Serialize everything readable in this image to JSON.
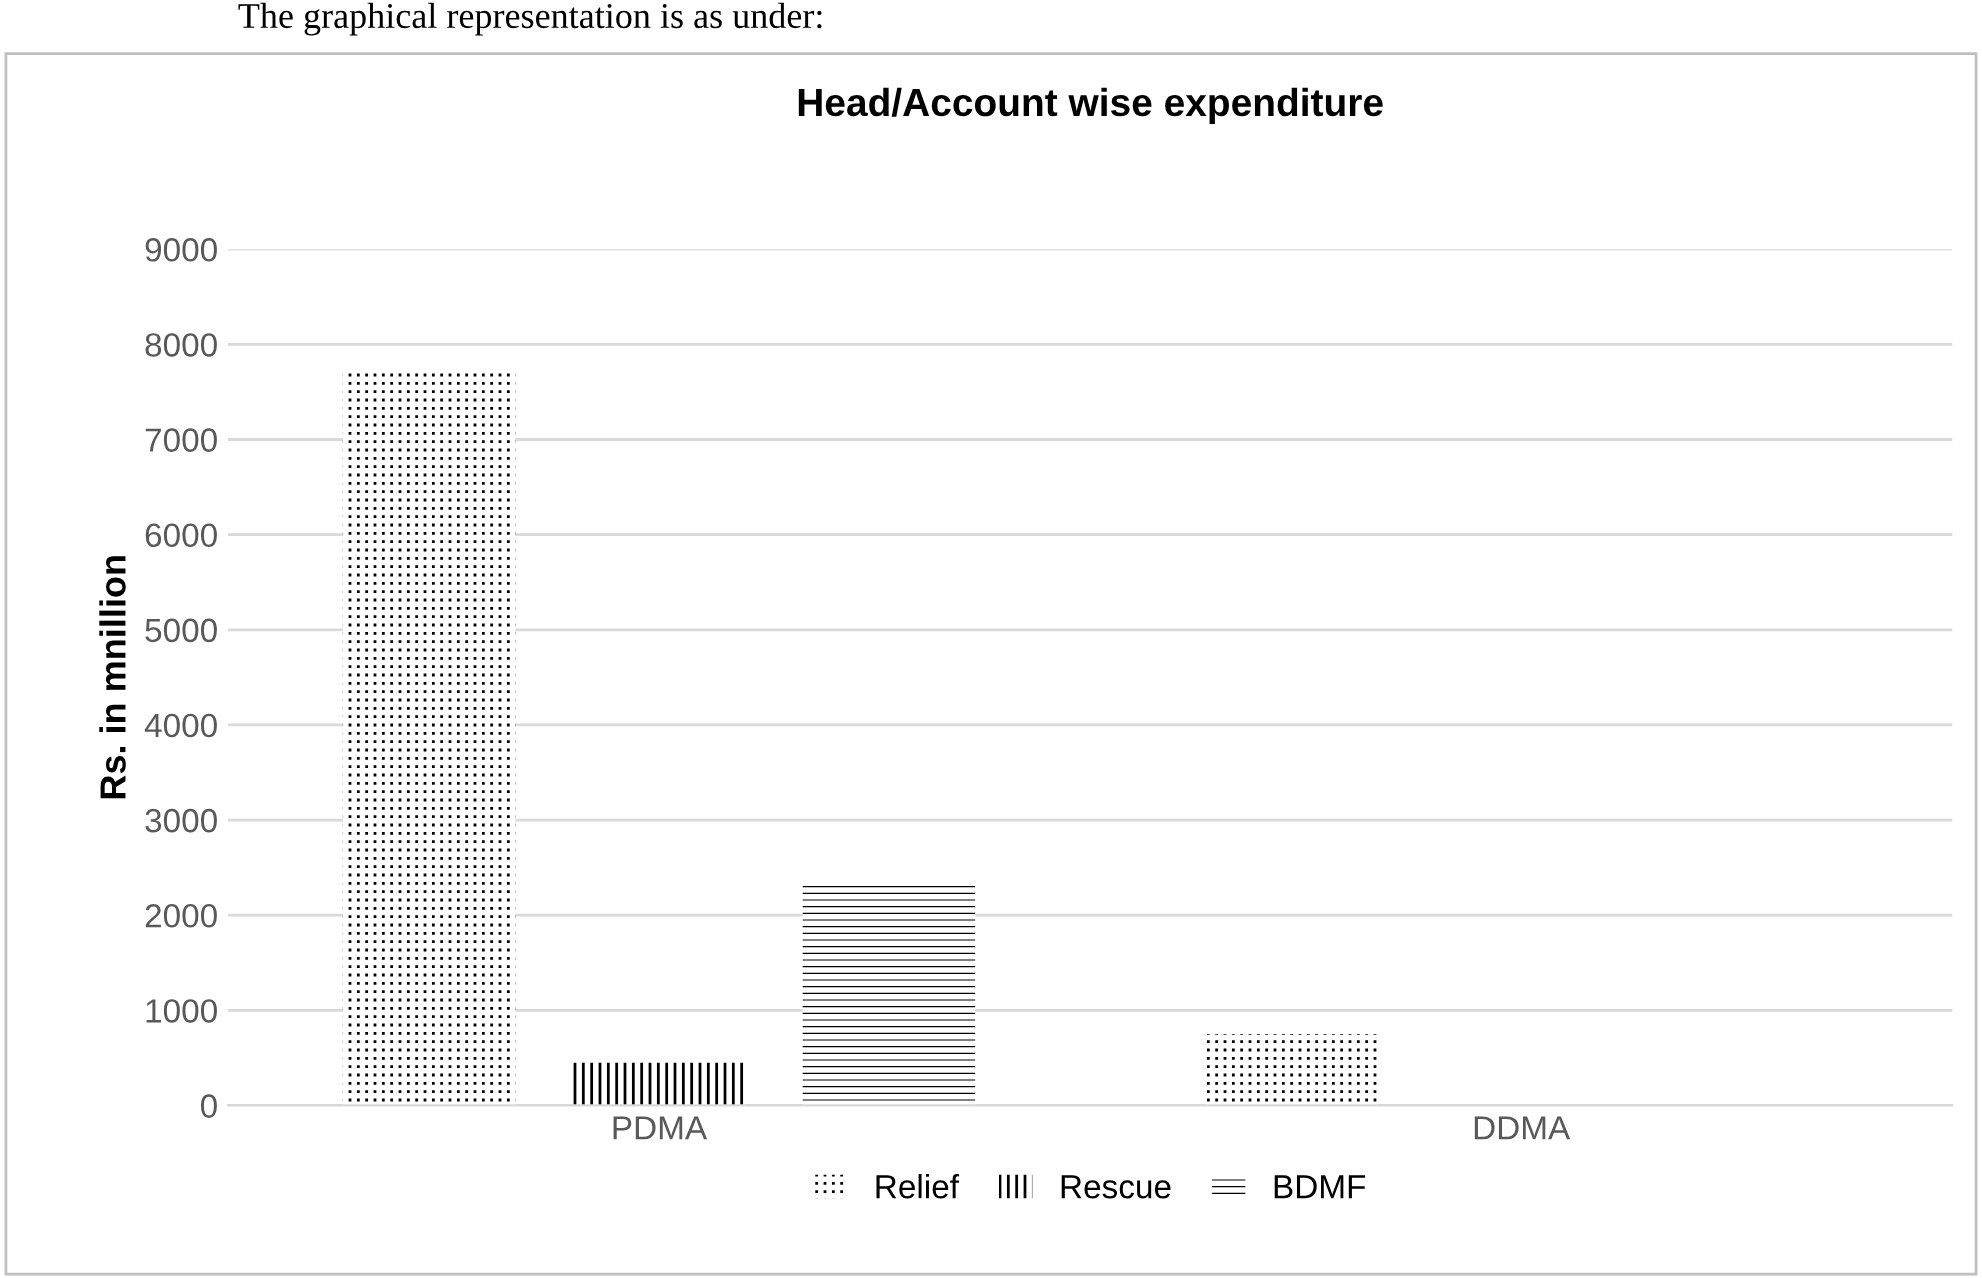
{
  "chart_data": {
    "type": "bar",
    "title": "Head/Account wise expenditure",
    "ylabel": "Rs. in mnillion",
    "annotations": [
      "The graphical representation is as under:"
    ],
    "categories": [
      "PDMA",
      "DDMA"
    ],
    "series": [
      {
        "name": "Relief",
        "color": "#000000",
        "values": [
          7700,
          750
        ]
      },
      {
        "name": "Rescue",
        "color": "#000000",
        "values": [
          450,
          null
        ]
      },
      {
        "name": "BDMF",
        "color": "#000000",
        "values": [
          2330,
          null
        ]
      }
    ],
    "ylim": [
      0,
      9000
    ],
    "yticks": [
      0,
      1000,
      2000,
      3000,
      4000,
      5000,
      6000,
      7000,
      8000,
      9000
    ],
    "grid": "y",
    "legend": "bottom"
  }
}
